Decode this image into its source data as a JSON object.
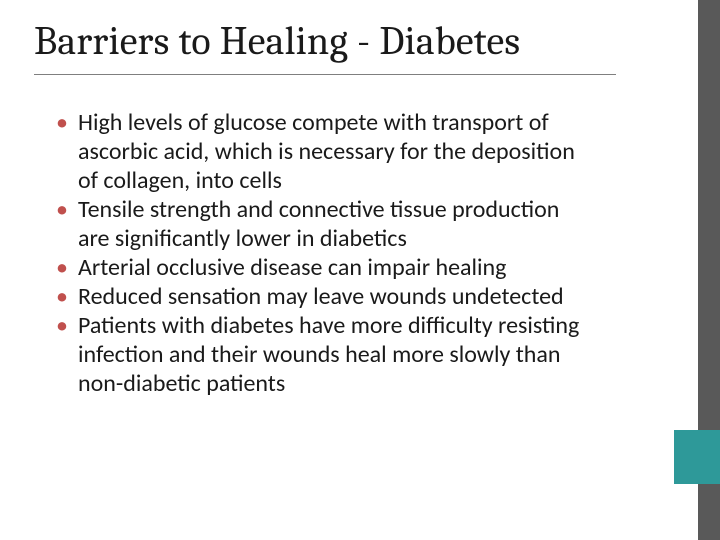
{
  "slide": {
    "title": "Barriers to Healing - Diabetes",
    "bullets": [
      "High levels of glucose compete with transport of ascorbic acid, which is necessary for the deposition of collagen, into cells",
      "Tensile strength and connective tissue production are significantly lower in diabetics",
      "Arterial occlusive disease can impair healing",
      "Reduced sensation may leave wounds undetected",
      "Patients with diabetes have more difficulty resisting infection and their wounds heal more slowly than non-diabetic patients"
    ]
  },
  "style": {
    "background_color": "#ffffff",
    "sidebar_color": "#595959",
    "accent_color": "#2e9999",
    "bullet_color": "#c0504d",
    "title_font": "Cambria",
    "title_fontsize": 40,
    "body_font": "Calibri",
    "body_fontsize": 24,
    "text_color": "#1a1a1a",
    "underline_color": "#7f7f7f",
    "slide_width": 720,
    "slide_height": 540
  }
}
